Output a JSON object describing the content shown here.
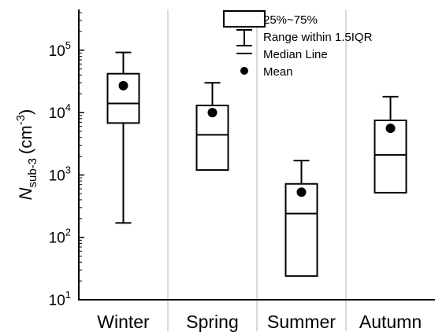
{
  "chart_data": {
    "type": "box",
    "y_axis": {
      "label_main": "N",
      "label_sub": "sub-3",
      "label_unit": "(cm",
      "label_unit_exp": "-3",
      "label_unit_close": ")",
      "scale": "log",
      "ylim": [
        10,
        450000
      ],
      "ticks": [
        {
          "value": 10,
          "base": "10",
          "exp": "1"
        },
        {
          "value": 100,
          "base": "10",
          "exp": "2"
        },
        {
          "value": 1000,
          "base": "10",
          "exp": "3"
        },
        {
          "value": 10000,
          "base": "10",
          "exp": "4"
        },
        {
          "value": 100000,
          "base": "10",
          "exp": "5"
        }
      ]
    },
    "categories": [
      "Winter",
      "Spring",
      "Summer",
      "Autumn"
    ],
    "boxes": [
      {
        "category": "Winter",
        "whisker_low": 170,
        "q1": 6800,
        "median": 14000,
        "q3": 42000,
        "whisker_high": 92000,
        "mean": 27000
      },
      {
        "category": "Spring",
        "whisker_low": 1200,
        "q1": 1200,
        "median": 4400,
        "q3": 13000,
        "whisker_high": 30000,
        "mean": 10000
      },
      {
        "category": "Summer",
        "whisker_low": 24,
        "q1": 24,
        "median": 240,
        "q3": 720,
        "whisker_high": 1700,
        "mean": 530
      },
      {
        "category": "Autumn",
        "whisker_low": 520,
        "q1": 520,
        "median": 2100,
        "q3": 7500,
        "whisker_high": 18000,
        "mean": 5600
      }
    ],
    "legend": {
      "position": "top-center",
      "items": [
        {
          "symbol": "box",
          "label": "25%~75%"
        },
        {
          "symbol": "whisker",
          "label": "Range within 1.5IQR"
        },
        {
          "symbol": "median",
          "label": "Median Line"
        },
        {
          "symbol": "mean",
          "label": "Mean"
        }
      ]
    },
    "grid": false,
    "separators": "vertical gray lines between categories"
  }
}
